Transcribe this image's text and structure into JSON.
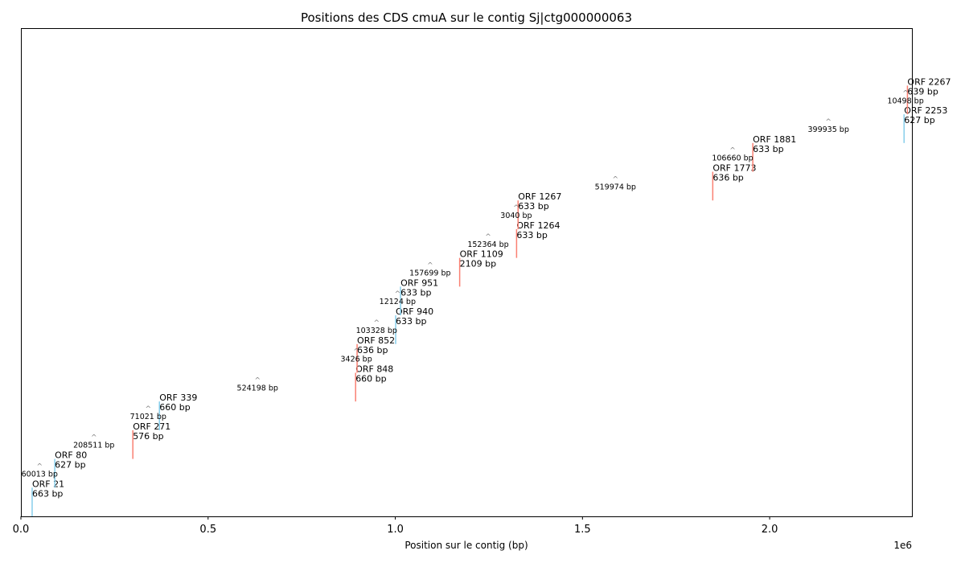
{
  "chart_data": {
    "type": "segment",
    "title": "Positions des CDS cmuA sur le contig Sj|ctg000000063",
    "xlabel": "Position sur le contig (bp)",
    "ylabel": "",
    "x_offset_label": "1e6",
    "xlim": [
      0,
      2380000
    ],
    "ylim": [
      0,
      17
    ],
    "x_ticks": [
      {
        "value": 0,
        "label": "0.0"
      },
      {
        "value": 500000,
        "label": "0.5"
      },
      {
        "value": 1000000,
        "label": "1.0"
      },
      {
        "value": 1500000,
        "label": "1.5"
      },
      {
        "value": 2000000,
        "label": "2.0"
      }
    ],
    "colors": {
      "plus": "#fa8072",
      "minus": "#87ceeb",
      "gap": "#808080"
    },
    "series": [
      {
        "label": "ORF 21",
        "length": "663 bp",
        "x": 30000,
        "level": 1,
        "strand": "minus"
      },
      {
        "label": "ORF 80",
        "length": "627 bp",
        "x": 90500,
        "level": 2,
        "strand": "minus"
      },
      {
        "label": "ORF 271",
        "length": "576 bp",
        "x": 299000,
        "level": 3,
        "strand": "plus"
      },
      {
        "label": "ORF 339",
        "length": "660 bp",
        "x": 370000,
        "level": 4,
        "strand": "minus"
      },
      {
        "label": "ORF 848",
        "length": "660 bp",
        "x": 894000,
        "level": 5,
        "strand": "plus"
      },
      {
        "label": "ORF 852",
        "length": "636 bp",
        "x": 898000,
        "level": 6,
        "strand": "plus"
      },
      {
        "label": "ORF 940",
        "length": "633 bp",
        "x": 1001000,
        "level": 7,
        "strand": "minus"
      },
      {
        "label": "ORF 951",
        "length": "633 bp",
        "x": 1014000,
        "level": 8,
        "strand": "minus"
      },
      {
        "label": "ORF 1109",
        "length": "2109 bp",
        "x": 1172000,
        "level": 9,
        "strand": "plus"
      },
      {
        "label": "ORF 1264",
        "length": "633 bp",
        "x": 1324000,
        "level": 10,
        "strand": "plus"
      },
      {
        "label": "ORF 1267",
        "length": "633 bp",
        "x": 1328000,
        "level": 11,
        "strand": "plus"
      },
      {
        "label": "ORF 1773",
        "length": "636 bp",
        "x": 1848000,
        "level": 12,
        "strand": "plus"
      },
      {
        "label": "ORF 1881",
        "length": "633 bp",
        "x": 1955000,
        "level": 13,
        "strand": "plus"
      },
      {
        "label": "ORF 2253",
        "length": "627 bp",
        "x": 2359000,
        "level": 14,
        "strand": "minus"
      },
      {
        "label": "ORF 2267",
        "length": "639 bp",
        "x": 2368000,
        "level": 15,
        "strand": "plus"
      }
    ],
    "gaps": [
      {
        "label": "60013 bp",
        "x": 50000,
        "level": 1.5
      },
      {
        "label": "208511 bp",
        "x": 195000,
        "level": 2.5
      },
      {
        "label": "71021 bp",
        "x": 340000,
        "level": 3.5
      },
      {
        "label": "524198 bp",
        "x": 632000,
        "level": 4.5
      },
      {
        "label": "3426 bp",
        "x": 896000,
        "level": 5.5
      },
      {
        "label": "103328 bp",
        "x": 950000,
        "level": 6.5
      },
      {
        "label": "12124 bp",
        "x": 1006000,
        "level": 7.5
      },
      {
        "label": "157699 bp",
        "x": 1093000,
        "level": 8.5
      },
      {
        "label": "152364 bp",
        "x": 1248000,
        "level": 9.5
      },
      {
        "label": "3040 bp",
        "x": 1323000,
        "level": 10.5
      },
      {
        "label": "519974 bp",
        "x": 1588000,
        "level": 11.5
      },
      {
        "label": "106660 bp",
        "x": 1901000,
        "level": 12.5
      },
      {
        "label": "399935 bp",
        "x": 2157000,
        "level": 13.5
      },
      {
        "label": "10498 bp",
        "x": 2363000,
        "level": 14.5
      }
    ]
  }
}
